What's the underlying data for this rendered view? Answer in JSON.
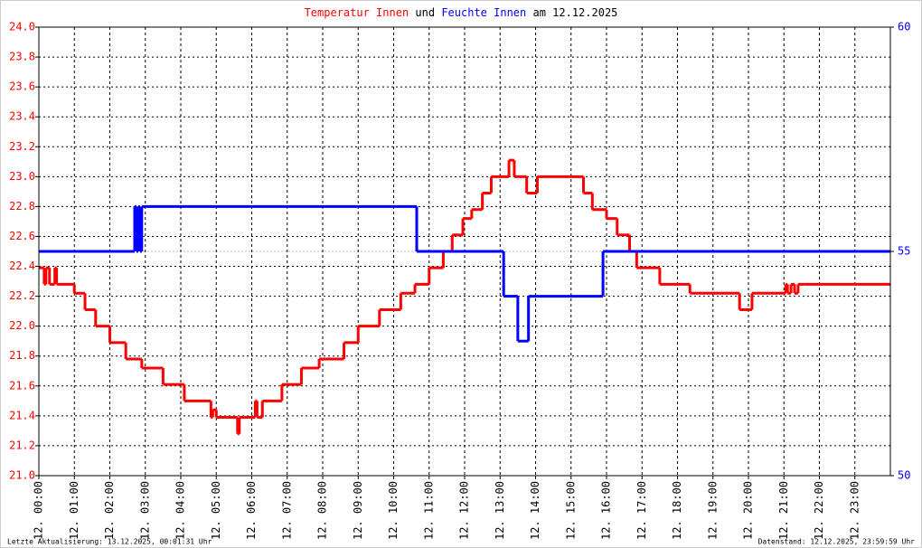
{
  "chart_data": {
    "type": "step",
    "title_join": "und",
    "title_date": "am 12.12.2025",
    "footer_left": "Letzte Aktualisierung: 13.12.2025, 00:01:31 Uhr",
    "footer_right": "Datenstand: 12.12.2025, 23:59:59 Uhr",
    "xlim": [
      0,
      24
    ],
    "xticks": [
      {
        "value": 0,
        "label": "12. 00:00"
      },
      {
        "value": 1,
        "label": "12. 01:00"
      },
      {
        "value": 2,
        "label": "12. 02:00"
      },
      {
        "value": 3,
        "label": "12. 03:00"
      },
      {
        "value": 4,
        "label": "12. 04:00"
      },
      {
        "value": 5,
        "label": "12. 05:00"
      },
      {
        "value": 6,
        "label": "12. 06:00"
      },
      {
        "value": 7,
        "label": "12. 07:00"
      },
      {
        "value": 8,
        "label": "12. 08:00"
      },
      {
        "value": 9,
        "label": "12. 09:00"
      },
      {
        "value": 10,
        "label": "12. 10:00"
      },
      {
        "value": 11,
        "label": "12. 11:00"
      },
      {
        "value": 12,
        "label": "12. 12:00"
      },
      {
        "value": 13,
        "label": "12. 13:00"
      },
      {
        "value": 14,
        "label": "12. 14:00"
      },
      {
        "value": 15,
        "label": "12. 15:00"
      },
      {
        "value": 16,
        "label": "12. 16:00"
      },
      {
        "value": 17,
        "label": "12. 17:00"
      },
      {
        "value": 18,
        "label": "12. 18:00"
      },
      {
        "value": 19,
        "label": "12. 19:00"
      },
      {
        "value": 20,
        "label": "12. 20:00"
      },
      {
        "value": 21,
        "label": "12. 21:00"
      },
      {
        "value": 22,
        "label": "12. 22:00"
      },
      {
        "value": 23,
        "label": "12. 23:00"
      }
    ],
    "ylim": [
      21.0,
      24.0
    ],
    "yticks": [
      {
        "value": 21,
        "label": "21.0"
      },
      21.2,
      21.4,
      21.6,
      21.8,
      {
        "value": 22,
        "label": "22.0"
      },
      22.2,
      22.4,
      22.6,
      22.8,
      {
        "value": 23,
        "label": "23.0"
      },
      23.2,
      23.4,
      23.6,
      23.8,
      {
        "value": 24,
        "label": "24.0"
      }
    ],
    "y2lim": [
      50,
      60
    ],
    "y2ticks": [
      50,
      55,
      60
    ],
    "grid": true,
    "series": [
      {
        "name": "Temperatur Innen",
        "color": "#ff0000",
        "x": [
          0,
          0.15,
          0.2,
          0.3,
          0.45,
          0.5,
          1.0,
          1.3,
          1.6,
          2.0,
          2.45,
          2.9,
          3.5,
          4.1,
          4.85,
          4.9,
          5.0,
          5.6,
          5.65,
          6.1,
          6.15,
          6.3,
          6.85,
          7.4,
          7.9,
          8.6,
          9.0,
          9.6,
          10.2,
          10.6,
          11.0,
          11.4,
          11.65,
          11.95,
          12.2,
          12.5,
          12.75,
          13.25,
          13.4,
          13.75,
          14.05,
          15.35,
          15.6,
          16.0,
          16.3,
          16.65,
          16.85,
          17.5,
          18.35,
          19.75,
          20.1,
          21.05,
          21.1,
          21.2,
          21.3,
          21.4,
          21.6
        ],
        "values": [
          22.39,
          22.28,
          22.39,
          22.28,
          22.39,
          22.28,
          22.22,
          22.11,
          22.0,
          21.89,
          21.78,
          21.72,
          21.61,
          21.5,
          21.39,
          21.44,
          21.39,
          21.28,
          21.39,
          21.5,
          21.39,
          21.5,
          21.61,
          21.72,
          21.78,
          21.89,
          22.0,
          22.11,
          22.22,
          22.28,
          22.39,
          22.5,
          22.61,
          22.72,
          22.78,
          22.89,
          23.0,
          23.11,
          23.0,
          22.89,
          23.0,
          22.89,
          22.78,
          22.72,
          22.61,
          22.5,
          22.39,
          22.28,
          22.22,
          22.11,
          22.22,
          22.28,
          22.22,
          22.28,
          22.22,
          22.28,
          22.28
        ]
      },
      {
        "name": "Feuchte Innen",
        "color": "#0000ff",
        "axis": "y2",
        "x": [
          0,
          2.7,
          2.75,
          2.8,
          2.85,
          2.9,
          10.65,
          13.1,
          13.5,
          13.8,
          15.9
        ],
        "values": [
          55,
          56,
          55,
          56,
          55,
          56,
          55,
          54,
          53,
          54,
          55
        ]
      }
    ]
  }
}
